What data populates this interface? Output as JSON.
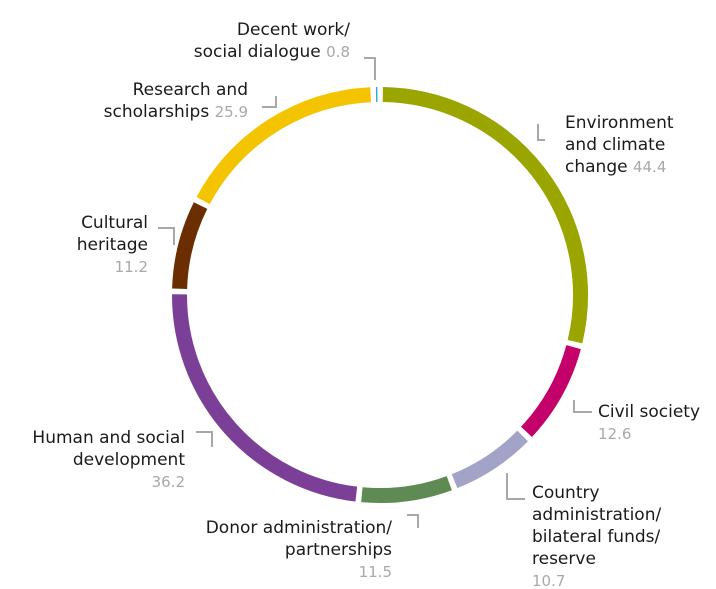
{
  "chart_data": {
    "type": "pie",
    "style": "donut",
    "title": "",
    "slices": [
      {
        "label_lines": [
          "Environment",
          "and climate",
          "change"
        ],
        "value": 44.4,
        "value_text": "44.4",
        "color": "#9aa500"
      },
      {
        "label_lines": [
          "Civil society"
        ],
        "value": 12.6,
        "value_text": "12.6",
        "color": "#c4006a"
      },
      {
        "label_lines": [
          "Country",
          "administration/",
          "bilateral funds/",
          "reserve"
        ],
        "value": 10.7,
        "value_text": "10.7",
        "color": "#a3a3c7"
      },
      {
        "label_lines": [
          "Donor administration/",
          "partnerships"
        ],
        "value": 11.5,
        "value_text": "11.5",
        "color": "#5f8a54"
      },
      {
        "label_lines": [
          "Human and social",
          "development"
        ],
        "value": 36.2,
        "value_text": "36.2",
        "color": "#7b3f98"
      },
      {
        "label_lines": [
          "Cultural",
          "heritage"
        ],
        "value": 11.2,
        "value_text": "11.2",
        "color": "#6b2e00"
      },
      {
        "label_lines": [
          "Research and",
          "scholarships"
        ],
        "value": 25.9,
        "value_text": "25.9",
        "color": "#f5c400"
      },
      {
        "label_lines": [
          "Decent work/",
          "social dialogue"
        ],
        "value": 0.8,
        "value_text": "0.8",
        "color": "#2aa7d6"
      }
    ]
  }
}
